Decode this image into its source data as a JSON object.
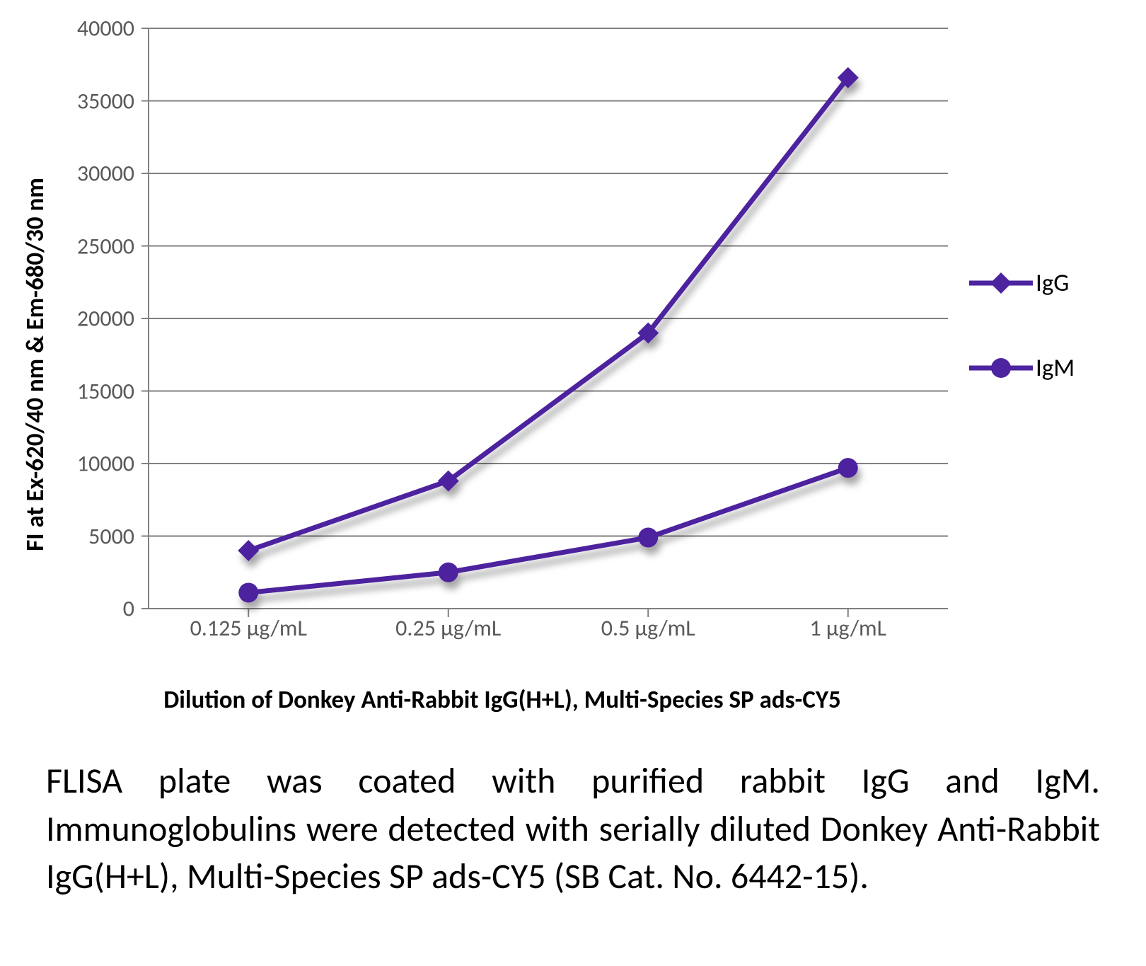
{
  "chart": {
    "type": "line",
    "y_axis_label": "FI at Ex-620/40 nm & Em-680/30 nm",
    "x_axis_label": "Dilution of Donkey Anti-Rabbit IgG(H+L), Multi-Species SP ads-CY5",
    "categories": [
      "0.125 μg/mL",
      "0.25 μg/mL",
      "0.5 μg/mL",
      "1 μg/mL"
    ],
    "ylim": [
      0,
      40000
    ],
    "ytick_step": 5000,
    "yticks": [
      0,
      5000,
      10000,
      15000,
      20000,
      25000,
      30000,
      35000,
      40000
    ],
    "series": [
      {
        "name": "IgG",
        "values": [
          4000,
          8800,
          19000,
          36600
        ],
        "color": "#4d249f",
        "shadow_color": "rgba(0,0,0,0.35)",
        "marker": "diamond",
        "marker_size": 30,
        "line_width": 7
      },
      {
        "name": "IgM",
        "values": [
          1100,
          2500,
          4900,
          9700
        ],
        "color": "#4d249f",
        "shadow_color": "rgba(0,0,0,0.35)",
        "marker": "circle",
        "marker_size": 28,
        "line_width": 7
      }
    ],
    "background_color": "#ffffff",
    "gridline_color": "#808080",
    "tick_color": "#808080",
    "tick_label_color": "#595959",
    "axis_label_color": "#000000",
    "axis_label_fontsize": 35,
    "tick_label_fontsize": 32,
    "legend_label_fontsize": 35,
    "gridline_width": 2
  },
  "caption": "FLISA plate was coated with purified rabbit IgG and IgM. Immunoglobulins were detected with serially diluted Donkey Anti-Rabbit IgG(H+L), Multi-Species SP ads-CY5 (SB Cat. No. 6442-15).",
  "caption_fontsize": 50,
  "caption_color": "#000000"
}
